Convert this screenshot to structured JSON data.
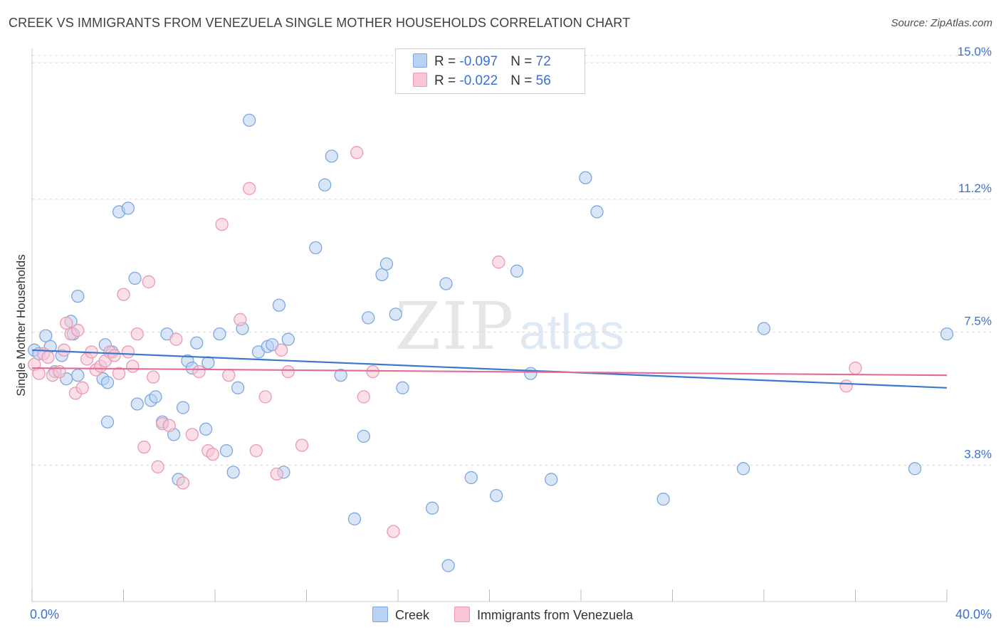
{
  "title": "CREEK VS IMMIGRANTS FROM VENEZUELA SINGLE MOTHER HOUSEHOLDS CORRELATION CHART",
  "source": "Source: ZipAtlas.com",
  "watermark": {
    "zip": "ZIP",
    "atlas": "atlas"
  },
  "legend": {
    "r_label": "R = ",
    "n_label": "N = ",
    "series1": {
      "r": "-0.097",
      "n": "72"
    },
    "series2": {
      "r": "-0.022",
      "n": "56"
    }
  },
  "bottom_legend": {
    "series1": "Creek",
    "series2": "Immigrants from Venezuela"
  },
  "chart_data": {
    "type": "scatter",
    "ylabel": "Single Mother Households",
    "xlim": [
      0,
      40
    ],
    "ylim": [
      0,
      15.4
    ],
    "x_tick_labels": [
      "0.0%",
      "40.0%"
    ],
    "y_ticks": [
      {
        "value": 3.8,
        "label": "3.8%"
      },
      {
        "value": 7.5,
        "label": "7.5%"
      },
      {
        "value": 11.2,
        "label": "11.2%"
      },
      {
        "value": 15.0,
        "label": "15.0%"
      }
    ],
    "grid": true,
    "legend_position": "top-center",
    "colors": {
      "creek_fill": "#b8d2f2",
      "creek_stroke": "#7fa7df",
      "creek_line": "#3a78d0",
      "ven_fill": "#f8c6d5",
      "ven_stroke": "#ec98b3",
      "ven_line": "#e46c98",
      "grid": "#d9d9d9",
      "tick_label": "#3a6fd8"
    },
    "series": [
      {
        "name": "Creek",
        "trend": [
          [
            0,
            7.0
          ],
          [
            40,
            5.95
          ]
        ],
        "points": [
          [
            0.1,
            7.0
          ],
          [
            0.3,
            6.9
          ],
          [
            0.6,
            7.4
          ],
          [
            0.8,
            7.1
          ],
          [
            1.0,
            6.4
          ],
          [
            1.3,
            6.85
          ],
          [
            1.5,
            6.2
          ],
          [
            1.7,
            7.8
          ],
          [
            1.8,
            7.45
          ],
          [
            2.0,
            8.5
          ],
          [
            2.0,
            6.3
          ],
          [
            3.1,
            6.2
          ],
          [
            3.2,
            7.15
          ],
          [
            3.3,
            6.1
          ],
          [
            3.3,
            5.0
          ],
          [
            3.5,
            6.95
          ],
          [
            3.8,
            10.85
          ],
          [
            4.2,
            10.95
          ],
          [
            4.5,
            9.0
          ],
          [
            4.6,
            5.5
          ],
          [
            5.2,
            5.6
          ],
          [
            5.4,
            5.7
          ],
          [
            5.7,
            5.0
          ],
          [
            5.9,
            7.45
          ],
          [
            6.2,
            4.65
          ],
          [
            6.4,
            3.4
          ],
          [
            6.6,
            5.4
          ],
          [
            6.8,
            6.7
          ],
          [
            7.0,
            6.5
          ],
          [
            7.2,
            7.2
          ],
          [
            7.6,
            4.8
          ],
          [
            7.7,
            6.65
          ],
          [
            8.2,
            7.45
          ],
          [
            8.5,
            4.2
          ],
          [
            8.8,
            3.6
          ],
          [
            9.0,
            5.95
          ],
          [
            9.2,
            7.6
          ],
          [
            9.5,
            13.4
          ],
          [
            9.9,
            6.95
          ],
          [
            10.3,
            7.1
          ],
          [
            10.5,
            7.15
          ],
          [
            10.8,
            8.25
          ],
          [
            11.0,
            3.6
          ],
          [
            11.2,
            7.3
          ],
          [
            12.4,
            9.85
          ],
          [
            12.8,
            11.6
          ],
          [
            13.1,
            12.4
          ],
          [
            13.5,
            6.3
          ],
          [
            14.1,
            2.3
          ],
          [
            14.5,
            4.6
          ],
          [
            14.7,
            7.9
          ],
          [
            15.3,
            9.1
          ],
          [
            15.5,
            9.4
          ],
          [
            15.9,
            8.0
          ],
          [
            16.2,
            5.95
          ],
          [
            17.5,
            2.6
          ],
          [
            18.1,
            8.85
          ],
          [
            18.2,
            1.0
          ],
          [
            19.2,
            3.45
          ],
          [
            20.3,
            2.95
          ],
          [
            21.2,
            9.2
          ],
          [
            21.8,
            6.35
          ],
          [
            22.7,
            3.4
          ],
          [
            24.2,
            11.8
          ],
          [
            24.7,
            10.85
          ],
          [
            27.6,
            2.85
          ],
          [
            31.1,
            3.7
          ],
          [
            32.0,
            7.6
          ],
          [
            38.6,
            3.7
          ],
          [
            40.0,
            7.45
          ]
        ]
      },
      {
        "name": "Immigrants from Venezuela",
        "trend": [
          [
            0,
            6.5
          ],
          [
            40,
            6.3
          ]
        ],
        "points": [
          [
            0.1,
            6.6
          ],
          [
            0.3,
            6.35
          ],
          [
            0.5,
            6.9
          ],
          [
            0.7,
            6.8
          ],
          [
            0.9,
            6.3
          ],
          [
            1.2,
            6.4
          ],
          [
            1.4,
            7.0
          ],
          [
            1.5,
            7.75
          ],
          [
            1.7,
            7.45
          ],
          [
            1.9,
            5.8
          ],
          [
            2.0,
            7.55
          ],
          [
            2.2,
            5.95
          ],
          [
            2.4,
            6.75
          ],
          [
            2.6,
            6.95
          ],
          [
            2.8,
            6.45
          ],
          [
            3.0,
            6.55
          ],
          [
            3.2,
            6.7
          ],
          [
            3.4,
            6.95
          ],
          [
            3.6,
            6.85
          ],
          [
            3.8,
            6.35
          ],
          [
            4.0,
            8.55
          ],
          [
            4.2,
            6.95
          ],
          [
            4.4,
            6.55
          ],
          [
            4.6,
            7.45
          ],
          [
            4.9,
            4.3
          ],
          [
            5.1,
            8.9
          ],
          [
            5.3,
            6.25
          ],
          [
            5.5,
            3.75
          ],
          [
            5.7,
            4.95
          ],
          [
            6.0,
            4.9
          ],
          [
            6.3,
            7.3
          ],
          [
            6.6,
            3.3
          ],
          [
            7.0,
            4.65
          ],
          [
            7.3,
            6.4
          ],
          [
            7.7,
            4.2
          ],
          [
            7.9,
            4.1
          ],
          [
            8.3,
            10.5
          ],
          [
            8.6,
            6.3
          ],
          [
            9.1,
            7.85
          ],
          [
            9.5,
            11.5
          ],
          [
            9.8,
            4.2
          ],
          [
            10.2,
            5.7
          ],
          [
            10.7,
            3.55
          ],
          [
            10.9,
            7.0
          ],
          [
            11.2,
            6.4
          ],
          [
            11.8,
            4.35
          ],
          [
            14.2,
            12.5
          ],
          [
            14.5,
            5.7
          ],
          [
            14.9,
            6.4
          ],
          [
            15.8,
            1.95
          ],
          [
            20.4,
            9.45
          ],
          [
            35.6,
            6.0
          ],
          [
            36.0,
            6.5
          ]
        ]
      }
    ]
  }
}
